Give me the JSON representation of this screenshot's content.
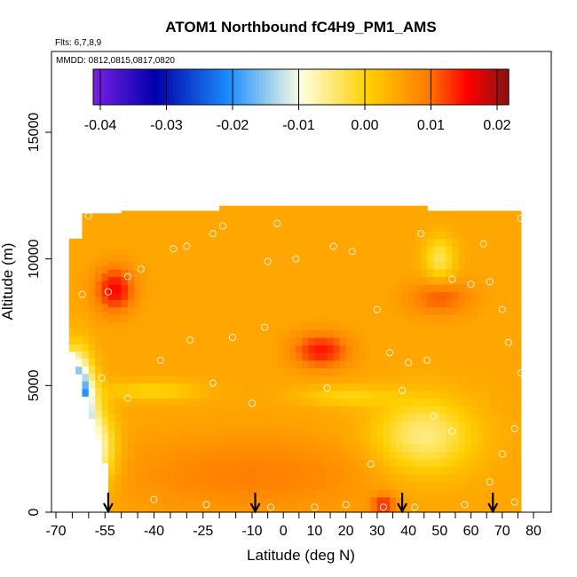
{
  "chart_data": {
    "type": "heatmap",
    "title": "ATOM1 Northbound fC4H9_PM1_AMS",
    "flights_text": "Flts: 6,7,8,9",
    "mmdd_text": "MMDD: 0812,0815,0817,0820",
    "xlabel": "Latitude (deg N)",
    "ylabel": "Altitude (m)",
    "xlim": [
      -70,
      80
    ],
    "ylim": [
      0,
      17000
    ],
    "x_ticks": [
      -70,
      -55,
      -40,
      -25,
      -10,
      0,
      10,
      20,
      30,
      40,
      50,
      60,
      70,
      80
    ],
    "x_tick_labels": [
      "-70",
      "-55",
      "-40",
      "-25",
      "-10",
      "0",
      "10",
      "20",
      "30",
      "40",
      "50",
      "60",
      "70",
      "80"
    ],
    "y_ticks": [
      0,
      5000,
      10000,
      15000
    ],
    "y_tick_labels": [
      "0",
      "5000",
      "10000",
      "15000"
    ],
    "colorbar": {
      "range": [
        -0.04,
        0.02
      ],
      "ticks": [
        -0.04,
        -0.03,
        -0.02,
        -0.01,
        0.0,
        0.01,
        0.02
      ],
      "tick_labels": [
        "-0.04",
        "-0.03",
        "-0.02",
        "-0.01",
        "0.00",
        "0.01",
        "0.02"
      ],
      "colors": [
        "#7a1fe6",
        "#0000aa",
        "#1e90ff",
        "#ffffe0",
        "#ffd000",
        "#ff8000",
        "#ff0000",
        "#8b1010"
      ],
      "stops": [
        0.0,
        0.15,
        0.33,
        0.5,
        0.66,
        0.8,
        0.9,
        1.0
      ]
    },
    "arrows_lat": [
      -54,
      -9,
      38,
      67
    ],
    "grid": false,
    "legend": "colorbar top"
  }
}
